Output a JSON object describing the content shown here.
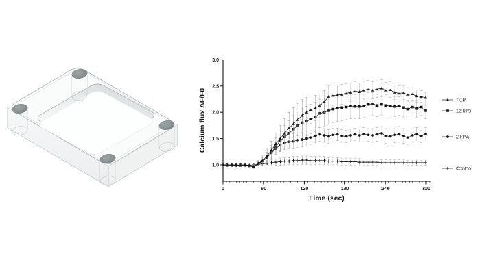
{
  "figure": {
    "left_panel": {
      "alt": "translucent rounded rectangular culture chamber, isometric CAD render, recessed rectangular well, four corner through-holes"
    }
  },
  "chart_data": {
    "type": "line",
    "title": "",
    "xlabel": "Time (sec)",
    "ylabel": "Calcium flux ΔF/F0",
    "xlim": [
      0,
      307
    ],
    "ylim": [
      0.69,
      3.0
    ],
    "xticks": [
      0,
      60,
      120,
      180,
      240,
      300
    ],
    "x_minor_step": 5,
    "yticks": [
      "1.0",
      "1.5",
      "2.0",
      "2.5",
      "3.0"
    ],
    "grid": false,
    "legend_position": "right",
    "error_bar_color": "#a0a0a0",
    "series_color": "#161616",
    "x": [
      0,
      6.5,
      13,
      19.5,
      26,
      32.5,
      39,
      45.5,
      52,
      58.5,
      65,
      71.5,
      78,
      84.5,
      91,
      97.5,
      104,
      110.5,
      117,
      123.5,
      130,
      136.5,
      143,
      149.5,
      156,
      162.5,
      169,
      175.5,
      182,
      188.5,
      195,
      201.5,
      208,
      214.5,
      221,
      227.5,
      234,
      240.5,
      247,
      253.5,
      260,
      266.5,
      273,
      279.5,
      286,
      292.5,
      299
    ],
    "series": [
      {
        "name": "TCP",
        "marker": "triangle",
        "values": [
          1.0,
          0.99,
          1.0,
          1.0,
          0.99,
          1.0,
          0.99,
          0.97,
          1.03,
          1.08,
          1.17,
          1.28,
          1.4,
          1.5,
          1.6,
          1.7,
          1.78,
          1.86,
          1.94,
          2.0,
          2.05,
          2.08,
          2.13,
          2.2,
          2.3,
          2.32,
          2.33,
          2.34,
          2.36,
          2.38,
          2.4,
          2.39,
          2.42,
          2.44,
          2.42,
          2.44,
          2.46,
          2.42,
          2.43,
          2.38,
          2.36,
          2.37,
          2.34,
          2.35,
          2.31,
          2.3,
          2.28
        ],
        "errors": [
          0.02,
          0.02,
          0.02,
          0.02,
          0.02,
          0.02,
          0.02,
          0.03,
          0.05,
          0.09,
          0.13,
          0.17,
          0.21,
          0.25,
          0.28,
          0.3,
          0.31,
          0.31,
          0.3,
          0.28,
          0.26,
          0.24,
          0.22,
          0.21,
          0.2,
          0.2,
          0.19,
          0.19,
          0.18,
          0.18,
          0.18,
          0.17,
          0.17,
          0.17,
          0.16,
          0.16,
          0.16,
          0.15,
          0.15,
          0.14,
          0.14,
          0.13,
          0.13,
          0.12,
          0.12,
          0.11,
          0.1
        ]
      },
      {
        "name": "12 kPa",
        "marker": "square",
        "values": [
          1.0,
          1.0,
          0.99,
          1.0,
          0.99,
          1.0,
          0.98,
          0.96,
          1.02,
          1.07,
          1.14,
          1.24,
          1.35,
          1.46,
          1.53,
          1.6,
          1.68,
          1.75,
          1.8,
          1.83,
          1.87,
          1.91,
          1.98,
          2.0,
          2.03,
          2.06,
          2.08,
          2.09,
          2.1,
          2.12,
          2.11,
          2.11,
          2.12,
          2.15,
          2.16,
          2.13,
          2.15,
          2.13,
          2.12,
          2.11,
          2.12,
          2.09,
          2.06,
          2.1,
          2.07,
          2.1,
          2.03
        ],
        "errors": [
          0.02,
          0.02,
          0.02,
          0.02,
          0.02,
          0.02,
          0.02,
          0.03,
          0.04,
          0.07,
          0.1,
          0.13,
          0.16,
          0.19,
          0.22,
          0.24,
          0.26,
          0.27,
          0.28,
          0.28,
          0.28,
          0.28,
          0.27,
          0.27,
          0.26,
          0.26,
          0.25,
          0.25,
          0.24,
          0.24,
          0.23,
          0.23,
          0.22,
          0.22,
          0.21,
          0.21,
          0.2,
          0.2,
          0.19,
          0.19,
          0.18,
          0.18,
          0.17,
          0.17,
          0.16,
          0.16,
          0.15
        ]
      },
      {
        "name": "2 kPa",
        "marker": "circle",
        "values": [
          1.0,
          0.99,
          1.0,
          0.99,
          1.0,
          0.99,
          0.99,
          0.97,
          1.02,
          1.07,
          1.14,
          1.23,
          1.31,
          1.38,
          1.42,
          1.44,
          1.45,
          1.47,
          1.48,
          1.5,
          1.52,
          1.55,
          1.58,
          1.56,
          1.54,
          1.57,
          1.58,
          1.55,
          1.54,
          1.56,
          1.58,
          1.56,
          1.59,
          1.57,
          1.56,
          1.58,
          1.6,
          1.55,
          1.54,
          1.57,
          1.58,
          1.55,
          1.52,
          1.56,
          1.59,
          1.54,
          1.59
        ],
        "errors": [
          0.02,
          0.02,
          0.02,
          0.02,
          0.02,
          0.02,
          0.02,
          0.03,
          0.04,
          0.06,
          0.08,
          0.1,
          0.11,
          0.12,
          0.13,
          0.13,
          0.14,
          0.14,
          0.14,
          0.14,
          0.13,
          0.13,
          0.13,
          0.13,
          0.13,
          0.13,
          0.12,
          0.12,
          0.12,
          0.12,
          0.12,
          0.12,
          0.12,
          0.12,
          0.13,
          0.13,
          0.13,
          0.14,
          0.14,
          0.15,
          0.15,
          0.14,
          0.13,
          0.13,
          0.12,
          0.12,
          0.12
        ]
      },
      {
        "name": "Control",
        "marker": "plus",
        "values": [
          1.0,
          1.0,
          1.0,
          0.99,
          1.0,
          1.0,
          0.99,
          1.0,
          1.01,
          1.02,
          1.03,
          1.04,
          1.05,
          1.06,
          1.07,
          1.07,
          1.08,
          1.08,
          1.09,
          1.09,
          1.08,
          1.08,
          1.08,
          1.08,
          1.07,
          1.07,
          1.07,
          1.06,
          1.06,
          1.06,
          1.06,
          1.05,
          1.05,
          1.05,
          1.05,
          1.05,
          1.04,
          1.04,
          1.04,
          1.04,
          1.04,
          1.04,
          1.04,
          1.04,
          1.04,
          1.04,
          1.04
        ],
        "errors": [
          0.01,
          0.01,
          0.01,
          0.01,
          0.01,
          0.01,
          0.01,
          0.01,
          0.03,
          0.04,
          0.05,
          0.06,
          0.06,
          0.07,
          0.07,
          0.07,
          0.08,
          0.08,
          0.08,
          0.08,
          0.08,
          0.08,
          0.08,
          0.08,
          0.07,
          0.07,
          0.07,
          0.07,
          0.07,
          0.07,
          0.07,
          0.07,
          0.06,
          0.06,
          0.06,
          0.06,
          0.06,
          0.06,
          0.06,
          0.06,
          0.06,
          0.06,
          0.05,
          0.05,
          0.05,
          0.05,
          0.05
        ]
      }
    ]
  }
}
